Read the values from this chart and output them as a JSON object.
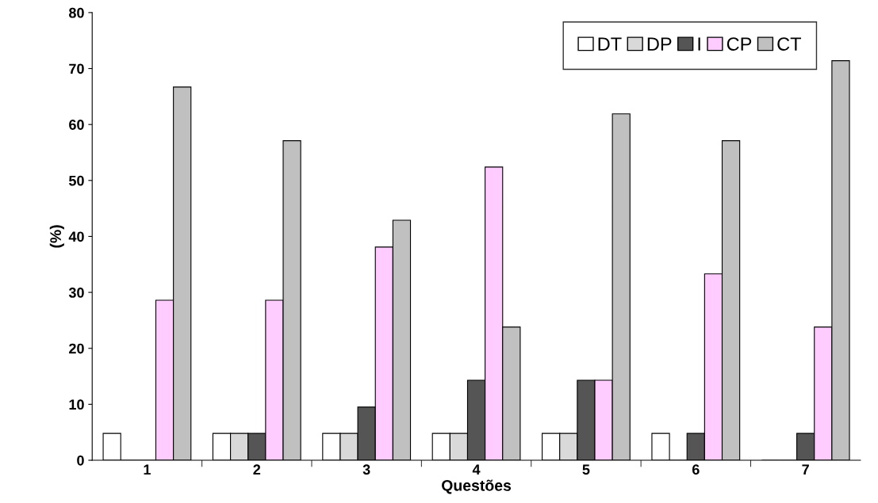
{
  "chart_data": {
    "type": "bar",
    "xlabel": "Questões",
    "ylabel": "(%)",
    "categories": [
      "1",
      "2",
      "3",
      "4",
      "5",
      "6",
      "7"
    ],
    "series": [
      {
        "name": "DT",
        "color": "#ffffff",
        "values": [
          4.8,
          4.8,
          4.8,
          4.8,
          4.8,
          4.8,
          0
        ]
      },
      {
        "name": "DP",
        "color": "#d9d9d9",
        "values": [
          0,
          4.8,
          4.8,
          4.8,
          4.8,
          0,
          0
        ]
      },
      {
        "name": "I",
        "color": "#555555",
        "values": [
          0,
          4.8,
          9.5,
          14.3,
          14.3,
          4.8,
          4.8
        ]
      },
      {
        "name": "CP",
        "color": "#ffccff",
        "values": [
          28.6,
          28.6,
          38.1,
          52.4,
          14.3,
          33.3,
          23.8
        ]
      },
      {
        "name": "CT",
        "color": "#c0c0c0",
        "values": [
          66.7,
          57.1,
          42.9,
          23.8,
          61.9,
          57.1,
          71.4
        ]
      }
    ],
    "ylim": [
      0,
      80
    ],
    "yticks": [
      0,
      10,
      20,
      30,
      40,
      50,
      60,
      70,
      80
    ],
    "grid": false,
    "legend": "top right"
  }
}
